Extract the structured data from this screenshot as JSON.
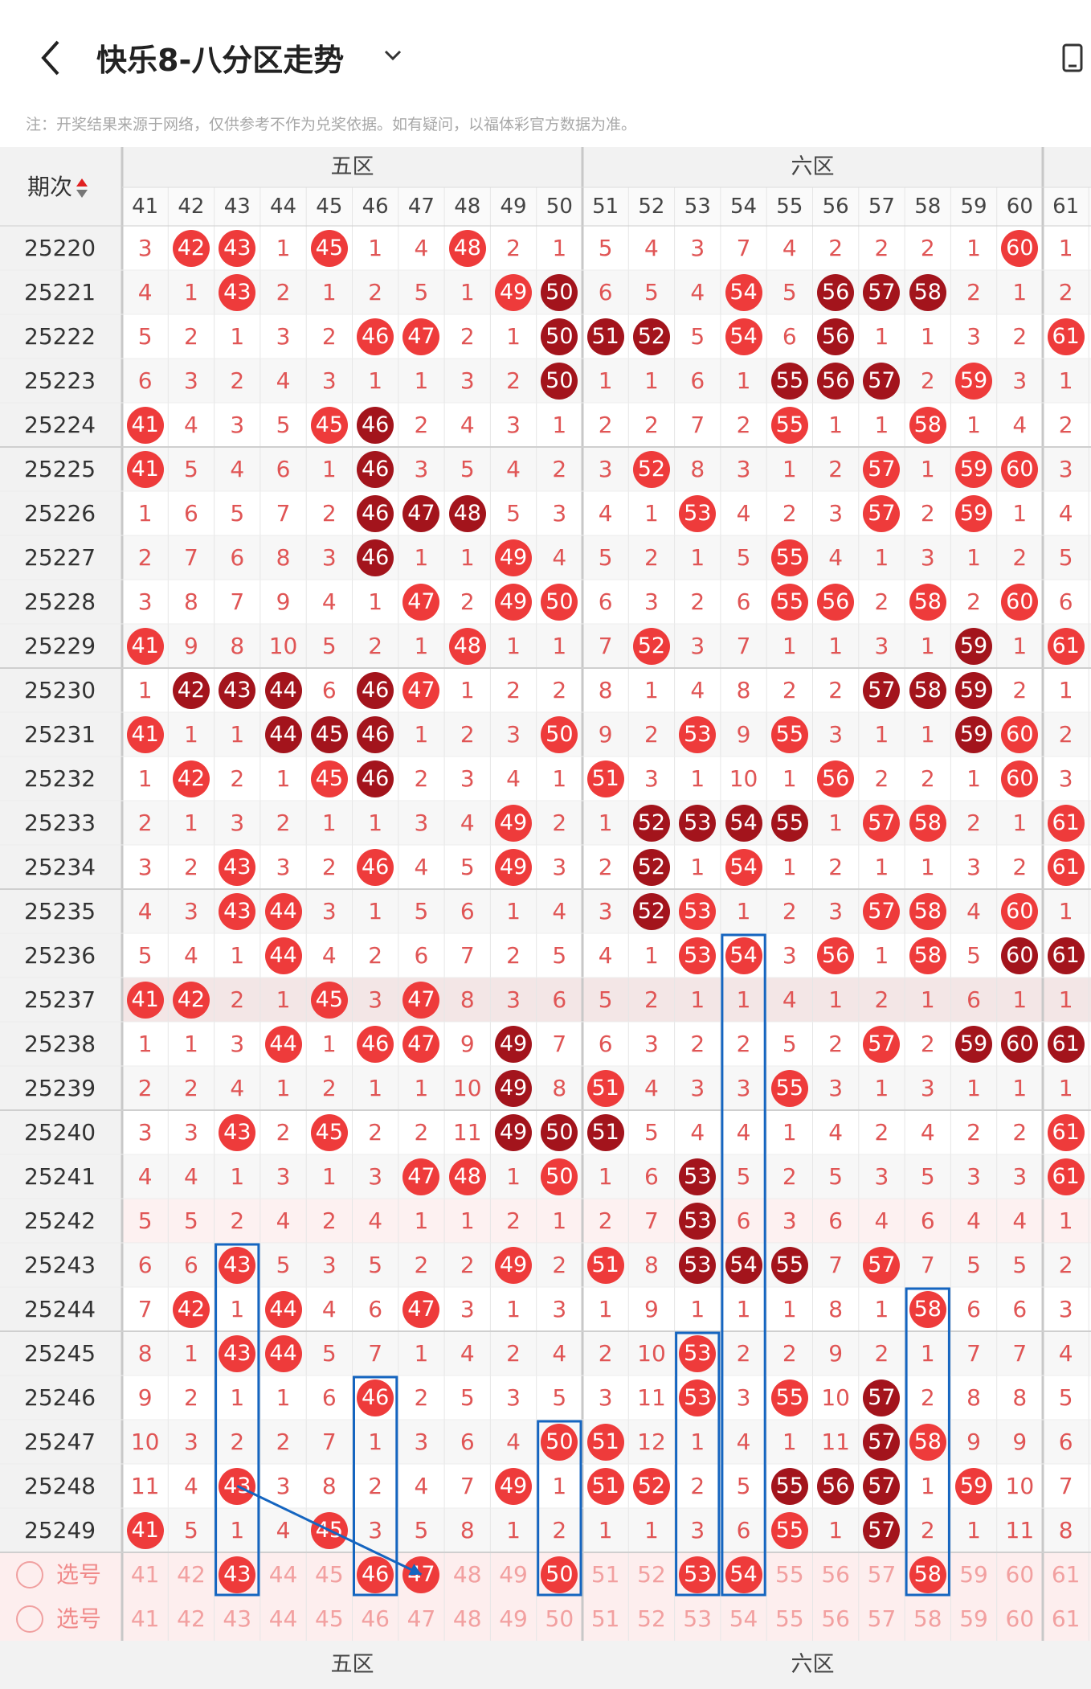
{
  "header": {
    "title": "快乐8-八分区走势",
    "note": "注：开奖结果来源于网络，仅供参考不作为兑奖依据。如有疑问，以福体彩官方数据为准。"
  },
  "table": {
    "period_header": "期次",
    "zones": [
      {
        "label": "五区",
        "start": 41
      },
      {
        "label": "六区",
        "start": 51
      }
    ],
    "columns": [
      41,
      42,
      43,
      44,
      45,
      46,
      47,
      48,
      49,
      50,
      51,
      52,
      53,
      54,
      55,
      56,
      57,
      58,
      59,
      60,
      61
    ],
    "rows": [
      {
        "period": "25220",
        "cells": [
          3,
          "H42",
          "H43",
          1,
          "H45",
          1,
          4,
          "H48",
          2,
          1,
          5,
          4,
          3,
          7,
          4,
          2,
          2,
          2,
          1,
          "H60",
          1
        ]
      },
      {
        "period": "25221",
        "cells": [
          4,
          1,
          "H43",
          2,
          1,
          2,
          5,
          1,
          "H49",
          "R50",
          6,
          5,
          4,
          "H54",
          5,
          "R56",
          "R57",
          "R58",
          2,
          1,
          2
        ]
      },
      {
        "period": "25222",
        "cells": [
          5,
          2,
          1,
          3,
          2,
          "H46",
          "H47",
          2,
          1,
          "R50",
          "R51",
          "R52",
          5,
          "H54",
          6,
          "R56",
          1,
          1,
          3,
          2,
          "H61"
        ]
      },
      {
        "period": "25223",
        "cells": [
          6,
          3,
          2,
          4,
          3,
          1,
          1,
          3,
          2,
          "R50",
          1,
          1,
          6,
          1,
          "R55",
          "R56",
          "R57",
          2,
          "H59",
          3,
          1
        ]
      },
      {
        "period": "25224",
        "cells": [
          "H41",
          4,
          3,
          5,
          "H45",
          "R46",
          2,
          4,
          3,
          1,
          2,
          2,
          7,
          2,
          "H55",
          1,
          1,
          "H58",
          1,
          4,
          2
        ]
      },
      {
        "period": "25225",
        "cells": [
          "H41",
          5,
          4,
          6,
          1,
          "R46",
          3,
          5,
          4,
          2,
          3,
          "H52",
          8,
          3,
          1,
          2,
          "H57",
          1,
          "H59",
          "H60",
          3
        ]
      },
      {
        "period": "25226",
        "cells": [
          1,
          6,
          5,
          7,
          2,
          "R46",
          "R47",
          "R48",
          5,
          3,
          4,
          1,
          "H53",
          4,
          2,
          3,
          "H57",
          2,
          "H59",
          1,
          4
        ]
      },
      {
        "period": "25227",
        "cells": [
          2,
          7,
          6,
          8,
          3,
          "R46",
          1,
          1,
          "H49",
          4,
          5,
          2,
          1,
          5,
          "H55",
          4,
          1,
          3,
          1,
          2,
          5
        ]
      },
      {
        "period": "25228",
        "cells": [
          3,
          8,
          7,
          9,
          4,
          1,
          "H47",
          2,
          "H49",
          "H50",
          6,
          3,
          2,
          6,
          "H55",
          "H56",
          2,
          "H58",
          2,
          "H60",
          6
        ]
      },
      {
        "period": "25229",
        "cells": [
          "H41",
          9,
          8,
          10,
          5,
          2,
          1,
          "H48",
          1,
          1,
          7,
          "H52",
          3,
          7,
          1,
          1,
          3,
          1,
          "R59",
          1,
          "H61"
        ]
      },
      {
        "period": "25230",
        "cells": [
          1,
          "R42",
          "R43",
          "R44",
          6,
          "R46",
          "H47",
          1,
          2,
          2,
          8,
          1,
          4,
          8,
          2,
          2,
          "R57",
          "R58",
          "R59",
          2,
          1
        ]
      },
      {
        "period": "25231",
        "cells": [
          "H41",
          1,
          1,
          "R44",
          "R45",
          "R46",
          1,
          2,
          3,
          "H50",
          9,
          2,
          "H53",
          9,
          "H55",
          3,
          1,
          1,
          "R59",
          "H60",
          2
        ]
      },
      {
        "period": "25232",
        "cells": [
          1,
          "H42",
          2,
          1,
          "H45",
          "R46",
          2,
          3,
          4,
          1,
          "H51",
          3,
          1,
          10,
          1,
          "H56",
          2,
          2,
          1,
          "H60",
          3
        ]
      },
      {
        "period": "25233",
        "cells": [
          2,
          1,
          3,
          2,
          1,
          1,
          3,
          4,
          "H49",
          2,
          1,
          "R52",
          "R53",
          "R54",
          "R55",
          1,
          "H57",
          "H58",
          2,
          1,
          "H61"
        ]
      },
      {
        "period": "25234",
        "cells": [
          3,
          2,
          "H43",
          3,
          2,
          "H46",
          4,
          5,
          "H49",
          3,
          2,
          "R52",
          1,
          "H54",
          1,
          2,
          1,
          1,
          3,
          2,
          "H61"
        ]
      },
      {
        "period": "25235",
        "cells": [
          4,
          3,
          "H43",
          "H44",
          3,
          1,
          5,
          6,
          1,
          4,
          3,
          "R52",
          "H53",
          1,
          2,
          3,
          "H57",
          "H58",
          4,
          "H60",
          1
        ]
      },
      {
        "period": "25236",
        "cells": [
          5,
          4,
          1,
          "H44",
          4,
          2,
          6,
          7,
          2,
          5,
          4,
          1,
          "H53",
          "H54",
          3,
          "H56",
          1,
          "H58",
          5,
          "R60",
          "R61"
        ]
      },
      {
        "period": "25237",
        "cells": [
          "H41",
          "H42",
          2,
          1,
          "H45",
          3,
          "H47",
          8,
          3,
          6,
          5,
          2,
          1,
          1,
          4,
          1,
          2,
          1,
          6,
          1,
          1
        ]
      },
      {
        "period": "25238",
        "cells": [
          1,
          1,
          3,
          "H44",
          1,
          "H46",
          "H47",
          9,
          "R49",
          7,
          6,
          3,
          2,
          2,
          5,
          2,
          "H57",
          2,
          "R59",
          "R60",
          "R61"
        ]
      },
      {
        "period": "25239",
        "cells": [
          2,
          2,
          4,
          1,
          2,
          1,
          1,
          10,
          "R49",
          8,
          "H51",
          4,
          3,
          3,
          "H55",
          3,
          1,
          3,
          1,
          1,
          1
        ]
      },
      {
        "period": "25240",
        "cells": [
          3,
          3,
          "H43",
          2,
          "H45",
          2,
          2,
          11,
          "R49",
          "R50",
          "R51",
          5,
          4,
          4,
          1,
          4,
          2,
          4,
          2,
          2,
          "H61"
        ]
      },
      {
        "period": "25241",
        "cells": [
          4,
          4,
          1,
          3,
          1,
          3,
          "H47",
          "H48",
          1,
          "H50",
          1,
          6,
          "R53",
          5,
          2,
          5,
          3,
          5,
          3,
          3,
          "H61"
        ]
      },
      {
        "period": "25242",
        "cells": [
          5,
          5,
          2,
          4,
          2,
          4,
          1,
          1,
          2,
          1,
          2,
          7,
          "R53",
          6,
          3,
          6,
          4,
          6,
          4,
          4,
          1
        ]
      },
      {
        "period": "25243",
        "cells": [
          6,
          6,
          "H43",
          5,
          3,
          5,
          2,
          2,
          "H49",
          2,
          "H51",
          8,
          "R53",
          "R54",
          "R55",
          7,
          "H57",
          7,
          5,
          5,
          2
        ]
      },
      {
        "period": "25244",
        "cells": [
          7,
          "H42",
          1,
          "H44",
          4,
          6,
          "H47",
          3,
          1,
          3,
          1,
          9,
          1,
          1,
          1,
          8,
          1,
          "H58",
          6,
          6,
          3
        ]
      },
      {
        "period": "25245",
        "cells": [
          8,
          1,
          "H43",
          "H44",
          5,
          7,
          1,
          4,
          2,
          4,
          2,
          10,
          "H53",
          2,
          2,
          9,
          2,
          1,
          7,
          7,
          4
        ]
      },
      {
        "period": "25246",
        "cells": [
          9,
          2,
          1,
          1,
          6,
          "H46",
          2,
          5,
          3,
          5,
          3,
          11,
          "H53",
          3,
          "H55",
          10,
          "R57",
          2,
          8,
          8,
          5
        ]
      },
      {
        "period": "25247",
        "cells": [
          10,
          3,
          2,
          2,
          7,
          1,
          3,
          6,
          4,
          "H50",
          "H51",
          12,
          1,
          4,
          1,
          11,
          "R57",
          "H58",
          9,
          9,
          6
        ]
      },
      {
        "period": "25248",
        "cells": [
          11,
          4,
          "H43",
          3,
          8,
          2,
          4,
          7,
          "H49",
          1,
          "H51",
          "H52",
          2,
          5,
          "R55",
          "R56",
          "R57",
          1,
          "H59",
          10,
          7
        ]
      },
      {
        "period": "25249",
        "cells": [
          "H41",
          5,
          1,
          4,
          "H45",
          3,
          5,
          8,
          1,
          2,
          1,
          1,
          3,
          6,
          "H55",
          1,
          "R57",
          2,
          1,
          11,
          8
        ]
      }
    ],
    "select_rows": [
      {
        "label": "选号",
        "cells": [
          41,
          42,
          "H43",
          44,
          45,
          "H46",
          "H47",
          48,
          49,
          "H50",
          51,
          52,
          "H53",
          "H54",
          55,
          56,
          57,
          "H58",
          59,
          60,
          61
        ]
      },
      {
        "label": "选号",
        "cells": [
          41,
          42,
          43,
          44,
          45,
          46,
          47,
          48,
          49,
          50,
          51,
          52,
          53,
          54,
          55,
          56,
          57,
          58,
          59,
          60,
          61
        ]
      }
    ],
    "footer_zones": [
      {
        "label": "五区"
      },
      {
        "label": "六区"
      }
    ]
  },
  "colors": {
    "hit": "#ee3b3b",
    "repeat": "#a3141c",
    "miss_text": "#e05555",
    "highlight_box": "#1565c0"
  }
}
